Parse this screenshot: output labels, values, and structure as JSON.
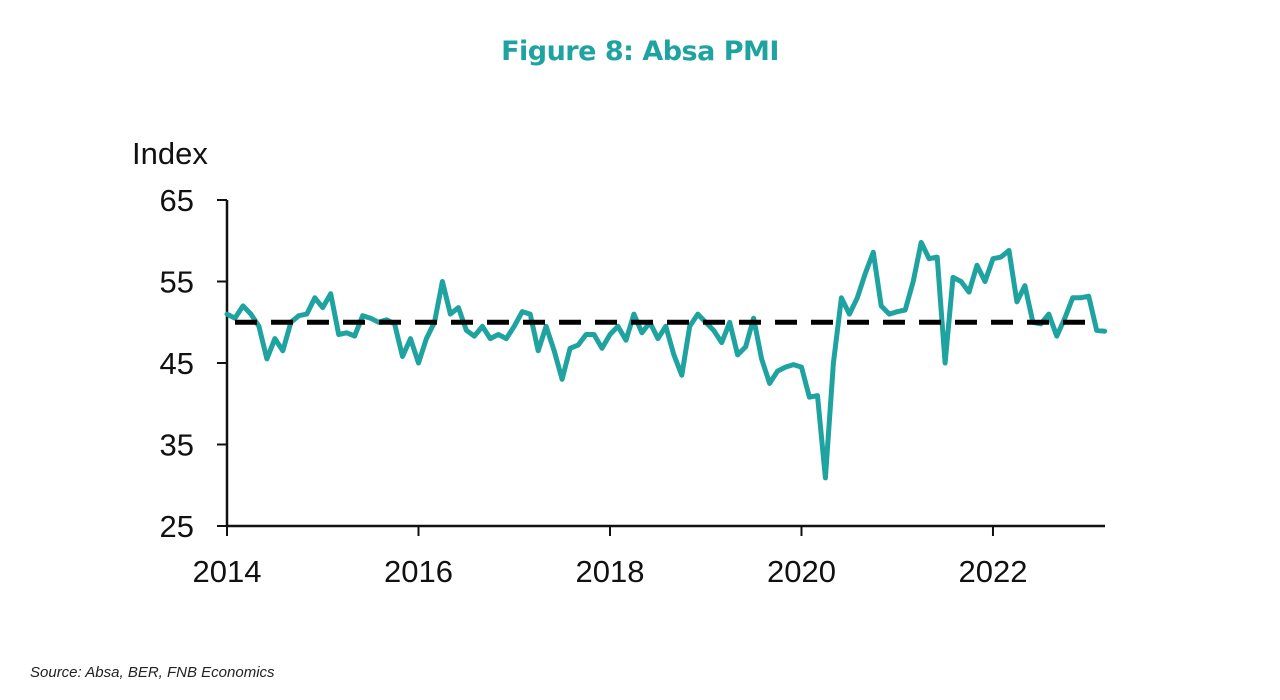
{
  "title": "Figure 8: Absa PMI",
  "source": "Source: Absa, BER, FNB Economics",
  "colors": {
    "title": "#1fa3a0",
    "series": "#1fa3a0",
    "reference": "#000000"
  },
  "chart_data": {
    "type": "line",
    "title": "Figure 8: Absa PMI",
    "ylabel": "Index",
    "xlabel": "",
    "ylim": [
      25,
      65
    ],
    "yticks": [
      25,
      35,
      45,
      55,
      65
    ],
    "xlim": [
      2014.0,
      2023.17
    ],
    "xticks": [
      2014,
      2016,
      2018,
      2020,
      2022
    ],
    "grid": false,
    "legend": "none",
    "reference_line": {
      "y": 50,
      "style": "dashed"
    },
    "series": [
      {
        "x": [
          2014.0,
          2014.083,
          2014.167,
          2014.25,
          2014.333,
          2014.417,
          2014.5,
          2014.583,
          2014.667,
          2014.75,
          2014.833,
          2014.917,
          2015.0,
          2015.083,
          2015.167,
          2015.25,
          2015.333,
          2015.417,
          2015.5,
          2015.583,
          2015.667,
          2015.75,
          2015.833,
          2015.917,
          2016.0,
          2016.083,
          2016.167,
          2016.25,
          2016.333,
          2016.417,
          2016.5,
          2016.583,
          2016.667,
          2016.75,
          2016.833,
          2016.917,
          2017.0,
          2017.083,
          2017.167,
          2017.25,
          2017.333,
          2017.417,
          2017.5,
          2017.583,
          2017.667,
          2017.75,
          2017.833,
          2017.917,
          2018.0,
          2018.083,
          2018.167,
          2018.25,
          2018.333,
          2018.417,
          2018.5,
          2018.583,
          2018.667,
          2018.75,
          2018.833,
          2018.917,
          2019.0,
          2019.083,
          2019.167,
          2019.25,
          2019.333,
          2019.417,
          2019.5,
          2019.583,
          2019.667,
          2019.75,
          2019.833,
          2019.917,
          2020.0,
          2020.083,
          2020.167,
          2020.25,
          2020.333,
          2020.417,
          2020.5,
          2020.583,
          2020.667,
          2020.75,
          2020.833,
          2020.917,
          2021.0,
          2021.083,
          2021.167,
          2021.25,
          2021.333,
          2021.417,
          2021.5,
          2021.583,
          2021.667,
          2021.75,
          2021.833,
          2021.917,
          2022.0,
          2022.083,
          2022.167,
          2022.25,
          2022.333,
          2022.417,
          2022.5,
          2022.583,
          2022.667,
          2022.75,
          2022.833,
          2022.917,
          2023.0,
          2023.083,
          2023.167
        ],
        "values": [
          51.0,
          50.5,
          52.0,
          51.0,
          49.5,
          45.5,
          48.0,
          46.5,
          50.0,
          50.8,
          51.0,
          53.0,
          51.8,
          53.5,
          48.5,
          48.7,
          48.3,
          50.8,
          50.5,
          50.0,
          50.3,
          49.8,
          45.8,
          48.0,
          45.0,
          48.0,
          50.0,
          55.0,
          51.0,
          51.8,
          49.0,
          48.3,
          49.5,
          48.0,
          48.5,
          48.0,
          49.5,
          51.3,
          51.0,
          46.5,
          49.5,
          46.5,
          43.0,
          46.8,
          47.2,
          48.5,
          48.5,
          46.8,
          48.5,
          49.5,
          47.8,
          51.0,
          48.7,
          50.0,
          48.0,
          49.5,
          46.0,
          43.5,
          49.5,
          51.0,
          50.0,
          49.0,
          47.5,
          50.0,
          46.0,
          47.0,
          50.5,
          45.5,
          42.5,
          44.0,
          44.5,
          44.8,
          44.5,
          40.8,
          41.0,
          30.9,
          45.0,
          53.0,
          51.0,
          53.0,
          56.0,
          58.6,
          52.0,
          51.0,
          51.3,
          51.5,
          55.0,
          59.8,
          57.8,
          58.0,
          45.0,
          55.5,
          55.0,
          53.7,
          57.0,
          55.0,
          57.8,
          58.0,
          58.8,
          52.5,
          54.5,
          50.0,
          49.8,
          51.0,
          48.3,
          50.5,
          53.0,
          53.0,
          53.2,
          49.0,
          48.9
        ]
      }
    ]
  }
}
